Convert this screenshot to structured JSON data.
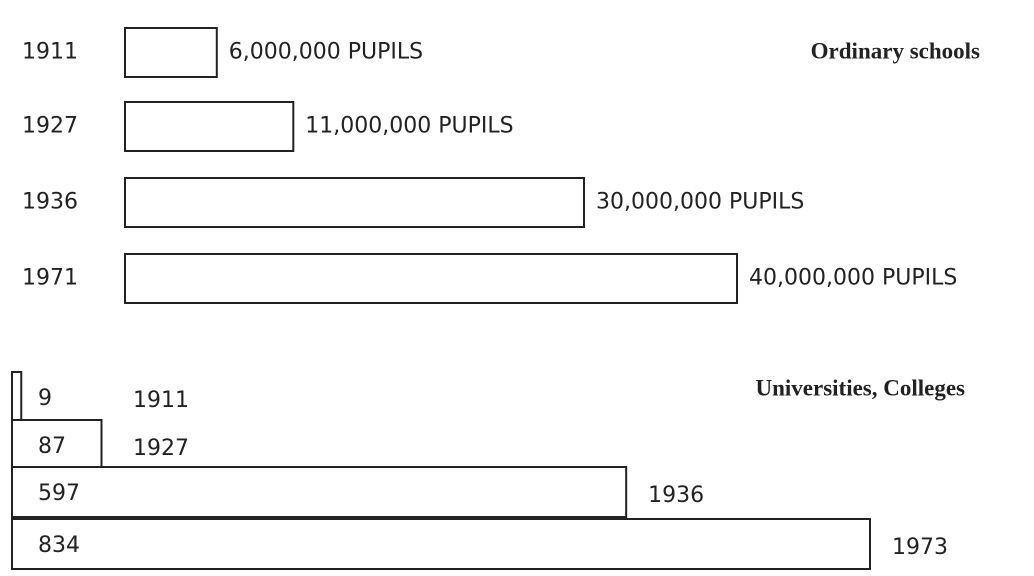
{
  "chart_data": [
    {
      "type": "bar",
      "orientation": "horizontal",
      "title": "Ordinary schools",
      "categories": [
        "1911",
        "1927",
        "1936",
        "1971"
      ],
      "values": [
        6000000,
        11000000,
        30000000,
        40000000
      ],
      "value_labels": [
        "6,000,000 PUPILS",
        "11,000,000 PUPILS",
        "30,000,000 PUPILS",
        "40,000,000 PUPILS"
      ],
      "color": "#ffffff"
    },
    {
      "type": "bar",
      "orientation": "horizontal",
      "title": "Universities, Colleges",
      "categories": [
        "1911",
        "1927",
        "1936",
        "1973"
      ],
      "values": [
        9,
        87,
        597,
        834
      ],
      "color": "#ffffff"
    }
  ]
}
